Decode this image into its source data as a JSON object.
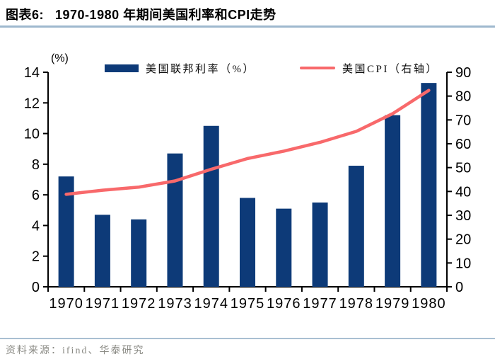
{
  "header": {
    "label": "图表6:",
    "title": "1970-1980 年期间美国利率和CPI走势"
  },
  "footer": {
    "source": "资料来源：ifind、华泰研究"
  },
  "colors": {
    "bar": "#0d3a78",
    "line": "#f8696b",
    "axis": "#000000",
    "title_rule": "#9eb8ce",
    "footer_rule": "#a9bfd2",
    "source_text": "#8a8a84"
  },
  "chart_data": {
    "type": "bar",
    "subtype": "combo-bar-line",
    "title": "",
    "categories": [
      "1970",
      "1971",
      "1972",
      "1973",
      "1974",
      "1975",
      "1976",
      "1977",
      "1978",
      "1979",
      "1980"
    ],
    "series": [
      {
        "name": "美国联邦利率（%）",
        "type": "bar",
        "axis": "left",
        "color": "#0d3a78",
        "values": [
          7.2,
          4.7,
          4.4,
          8.7,
          10.5,
          5.8,
          5.1,
          5.5,
          7.9,
          11.2,
          13.3
        ]
      },
      {
        "name": "美国CPI（右轴）",
        "type": "line",
        "axis": "right",
        "color": "#f8696b",
        "values": [
          38.8,
          40.5,
          41.8,
          44.4,
          49.3,
          53.8,
          56.9,
          60.6,
          65.2,
          72.6,
          82.4
        ]
      }
    ],
    "left_axis": {
      "unit": "(%)",
      "min": 0,
      "max": 14,
      "step": 2,
      "ticks": [
        0,
        2,
        4,
        6,
        8,
        10,
        12,
        14
      ]
    },
    "right_axis": {
      "min": 0,
      "max": 90,
      "step": 10,
      "ticks": [
        0,
        10,
        20,
        30,
        40,
        50,
        60,
        70,
        80,
        90
      ]
    },
    "xlabel": "",
    "ylabel": "(%)",
    "grid": false,
    "legend_position": "top"
  }
}
